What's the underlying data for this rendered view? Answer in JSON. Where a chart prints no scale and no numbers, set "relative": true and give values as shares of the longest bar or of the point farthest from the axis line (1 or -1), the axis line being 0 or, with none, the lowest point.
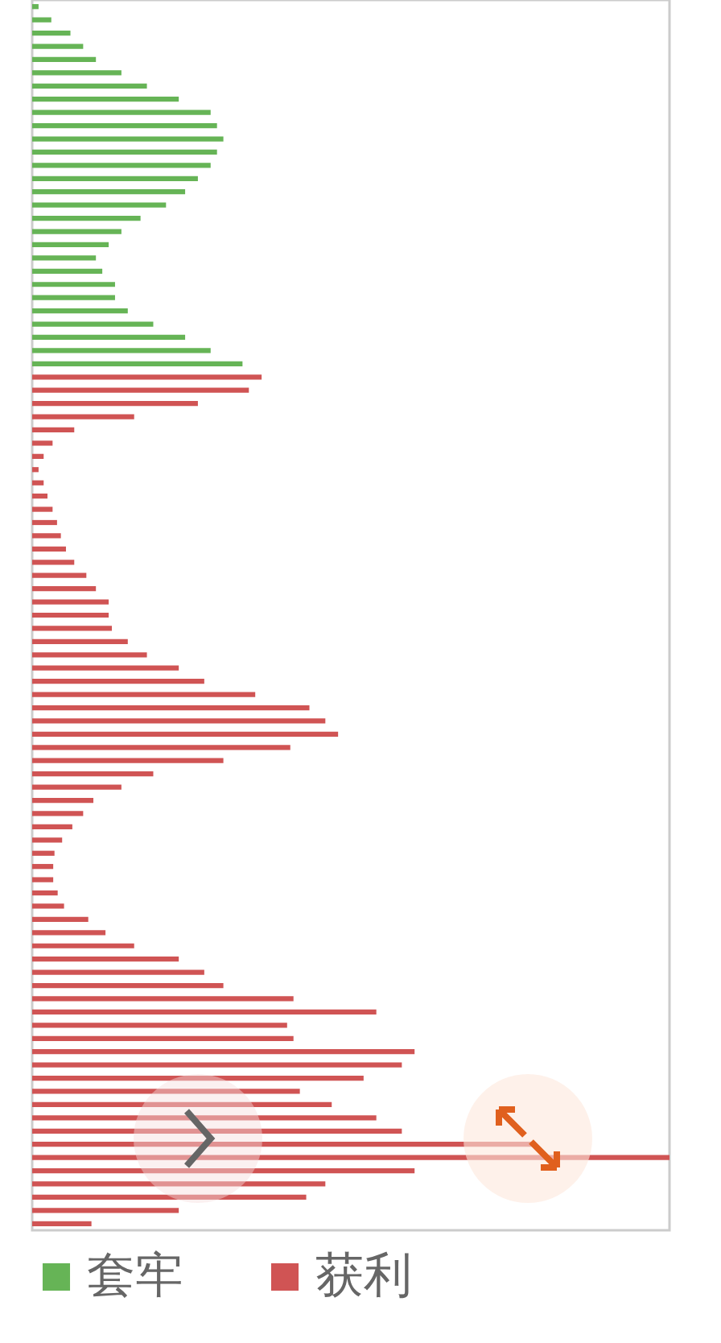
{
  "chart_data": {
    "type": "bar",
    "orientation": "horizontal",
    "relative": true,
    "stacked": true,
    "legend": "bottom",
    "tick_labels": false,
    "categories": [
      null,
      null,
      null,
      null,
      null,
      null,
      null,
      null,
      null,
      null,
      null,
      null,
      null,
      null,
      null,
      null,
      null,
      null,
      null,
      null,
      null,
      null,
      null,
      null,
      null,
      null,
      null,
      null,
      null,
      null,
      null,
      null,
      null,
      null,
      null,
      null,
      null,
      null,
      null,
      null,
      null,
      null,
      null,
      null,
      null,
      null,
      null,
      null,
      null,
      null,
      null,
      null,
      null,
      null,
      null,
      null,
      null,
      null,
      null,
      null,
      null,
      null,
      null,
      null,
      null,
      null,
      null,
      null,
      null,
      null,
      null,
      null,
      null,
      null,
      null,
      null,
      null,
      null,
      null,
      null,
      null,
      null,
      null,
      null,
      null,
      null,
      null,
      null,
      null,
      null,
      null,
      null,
      null
    ],
    "series": [
      {
        "name": "套牢",
        "color": "#66b456",
        "values": [
          0.01,
          0.03,
          0.06,
          0.08,
          0.1,
          0.14,
          0.18,
          0.23,
          0.28,
          0.29,
          0.3,
          0.29,
          0.28,
          0.26,
          0.24,
          0.21,
          0.17,
          0.14,
          0.12,
          0.1,
          0.11,
          0.13,
          0.13,
          0.15,
          0.19,
          0.24,
          0.28,
          0.33,
          0,
          0,
          0,
          0,
          0,
          0,
          0,
          0,
          0,
          0,
          0,
          0,
          0,
          0,
          0,
          0,
          0,
          0,
          0,
          0,
          0,
          0,
          0,
          0,
          0,
          0,
          0,
          0,
          0,
          0,
          0,
          0,
          0,
          0,
          0,
          0,
          0,
          0,
          0,
          0,
          0,
          0,
          0,
          0,
          0,
          0,
          0,
          0,
          0,
          0,
          0,
          0,
          0,
          0,
          0,
          0,
          0,
          0,
          0,
          0,
          0,
          0,
          0,
          0,
          0
        ]
      },
      {
        "name": "获利",
        "color": "#d05454",
        "values": [
          0,
          0,
          0,
          0,
          0,
          0,
          0,
          0,
          0,
          0,
          0,
          0,
          0,
          0,
          0,
          0,
          0,
          0,
          0,
          0,
          0,
          0,
          0,
          0,
          0,
          0,
          0,
          0,
          0.36,
          0.34,
          0.26,
          0.16,
          0.066,
          0.032,
          0.018,
          0.01,
          0.018,
          0.024,
          0.032,
          0.039,
          0.045,
          0.053,
          0.066,
          0.085,
          0.1,
          0.12,
          0.12,
          0.125,
          0.15,
          0.18,
          0.23,
          0.27,
          0.35,
          0.435,
          0.46,
          0.48,
          0.405,
          0.3,
          0.19,
          0.14,
          0.096,
          0.08,
          0.063,
          0.047,
          0.035,
          0.033,
          0.033,
          0.04,
          0.05,
          0.088,
          0.115,
          0.16,
          0.23,
          0.27,
          0.3,
          0.41,
          0.54,
          0.4,
          0.41,
          0.6,
          0.58,
          0.52,
          0.42,
          0.47,
          0.54,
          0.58,
          0.79,
          1,
          0.6,
          0.46,
          0.43,
          0.23,
          0.093
        ]
      }
    ]
  }
}
